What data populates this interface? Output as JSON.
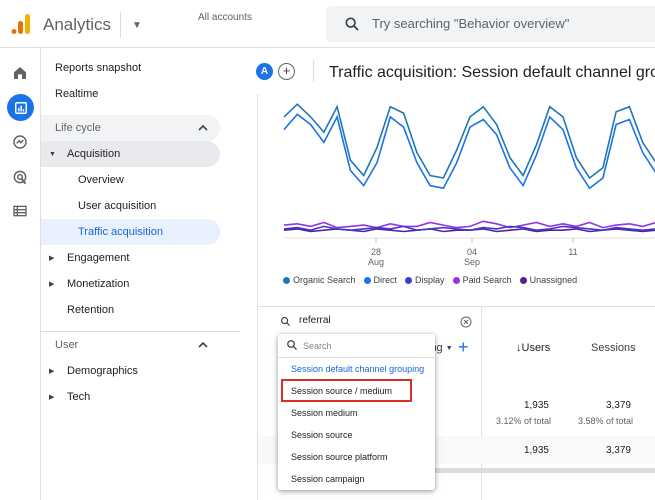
{
  "header": {
    "app_title": "Analytics",
    "account_label": "All accounts",
    "search_placeholder": "Try searching \"Behavior overview\"",
    "logo_colors": [
      "#f9ab00",
      "#e37400"
    ]
  },
  "rail": {
    "icons": [
      "home-icon",
      "reports-icon",
      "explore-icon",
      "advertising-icon",
      "configure-icon"
    ],
    "active_color": "#1a73e8"
  },
  "nav": {
    "reports_snapshot": "Reports snapshot",
    "realtime": "Realtime",
    "lifecycle_header": "Life cycle",
    "acquisition": "Acquisition",
    "overview": "Overview",
    "user_acquisition": "User acquisition",
    "traffic_acquisition": "Traffic acquisition",
    "engagement": "Engagement",
    "monetization": "Monetization",
    "retention": "Retention",
    "user_header": "User",
    "demographics": "Demographics",
    "tech": "Tech"
  },
  "content": {
    "avatar_letter": "A",
    "add_compare": "+",
    "page_title": "Traffic acquisition: Session default channel gro"
  },
  "chart_data": {
    "type": "line",
    "title": "",
    "x_ticks": [
      {
        "day": "28",
        "month": "Aug"
      },
      {
        "day": "04",
        "month": "Sep"
      },
      {
        "day": "11",
        "month": ""
      }
    ],
    "series": [
      {
        "name": "Organic Search",
        "color": "#1f77b4",
        "values": [
          92,
          102,
          92,
          80,
          100,
          58,
          46,
          68,
          100,
          95,
          64,
          46,
          44,
          66,
          92,
          100,
          86,
          60,
          46,
          70,
          100,
          92,
          60,
          44,
          52,
          96,
          100,
          72,
          56
        ]
      },
      {
        "name": "Direct",
        "color": "#1a73e8",
        "values": [
          82,
          94,
          86,
          72,
          92,
          50,
          38,
          56,
          92,
          84,
          56,
          38,
          36,
          56,
          84,
          90,
          78,
          52,
          38,
          62,
          92,
          82,
          52,
          36,
          44,
          86,
          90,
          64,
          48
        ]
      },
      {
        "name": "Display",
        "color": "#3c3ccf",
        "values": [
          4,
          5,
          3,
          6,
          4,
          3,
          4,
          5,
          4,
          6,
          3,
          4,
          5,
          4,
          3,
          5,
          4,
          6,
          5,
          3,
          4,
          6,
          5,
          4,
          3,
          5,
          4,
          3,
          4
        ]
      },
      {
        "name": "Paid Search",
        "color": "#9334e6",
        "values": [
          7,
          8,
          6,
          9,
          5,
          6,
          7,
          5,
          8,
          6,
          6,
          9,
          7,
          5,
          6,
          10,
          8,
          5,
          7,
          9,
          6,
          8,
          6,
          9,
          5,
          7,
          8,
          6,
          9
        ]
      },
      {
        "name": "Unassigned",
        "color": "#5a1e96",
        "values": [
          3,
          4,
          2,
          3,
          4,
          3,
          2,
          4,
          3,
          2,
          3,
          4,
          2,
          3,
          3,
          4,
          2,
          3,
          4,
          2,
          3,
          3,
          4,
          2,
          3,
          4,
          3,
          2,
          3
        ]
      }
    ]
  },
  "table": {
    "filter_value": "referral",
    "dimension_tail": "ing",
    "users_header": "↓Users",
    "sessions_header": "Sessions",
    "users_total": "1,935",
    "users_pct": "3.12% of total",
    "sessions_total": "3,379",
    "sessions_pct": "3.58% of total",
    "row_users": "1,935",
    "row_sessions": "3,379"
  },
  "dropdown": {
    "search_placeholder": "Search",
    "items": [
      "Session default channel grouping",
      "Session source / medium",
      "Session medium",
      "Session source",
      "Session source platform",
      "Session campaign"
    ],
    "highlight_color": "#d93025"
  }
}
